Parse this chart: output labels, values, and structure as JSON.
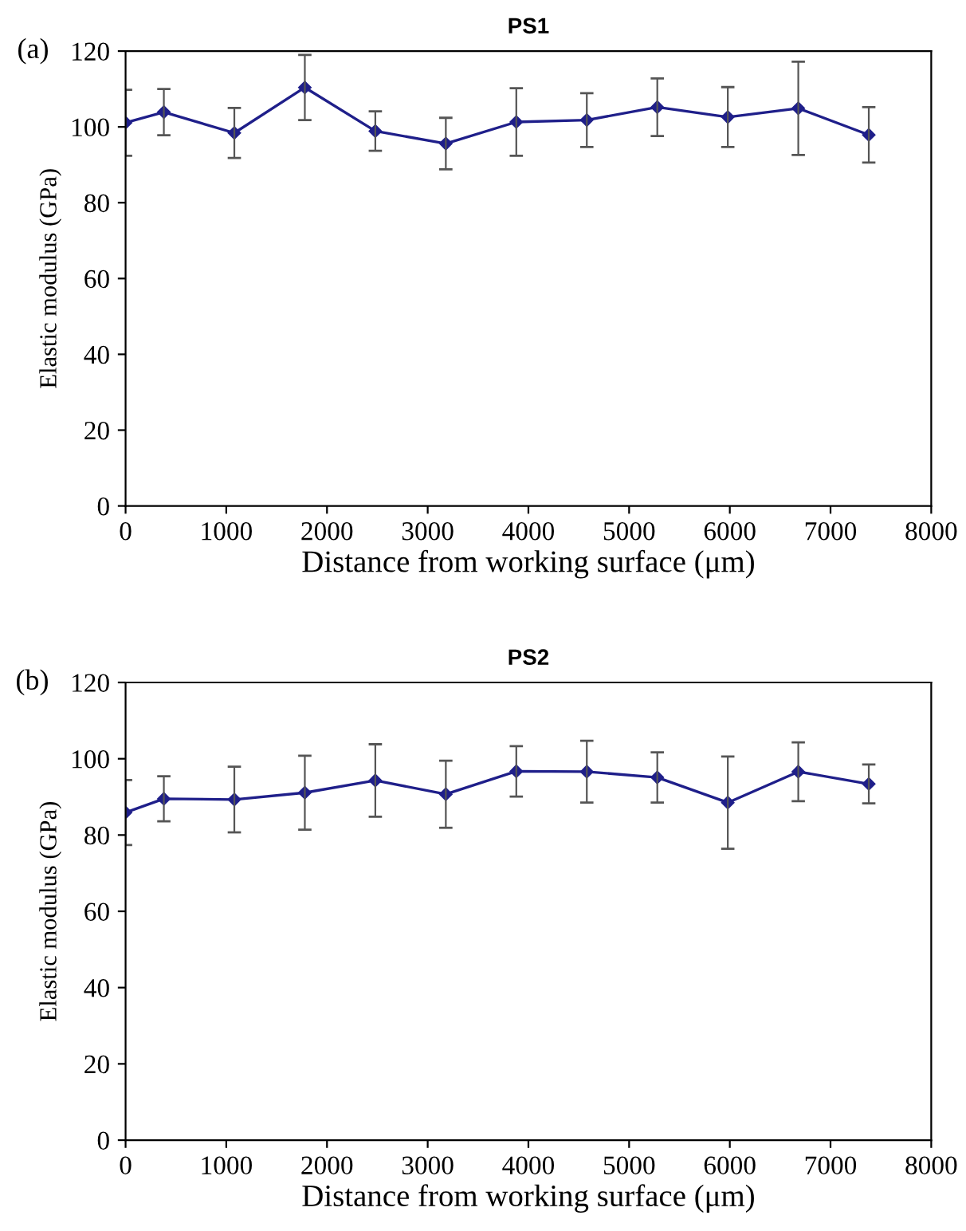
{
  "chart_data": [
    {
      "type": "line",
      "title": "PS1",
      "annotations": [
        "(a)"
      ],
      "xlabel": "Distance from working surface (μm)",
      "ylabel": "Elastic modulus (GPa)",
      "x": [
        0,
        380,
        1080,
        1780,
        2480,
        3180,
        3880,
        4580,
        5280,
        5980,
        6680,
        7380
      ],
      "series": [
        {
          "color": "#1f1f8a",
          "values": [
            101.1,
            103.9,
            98.4,
            110.4,
            98.9,
            95.6,
            101.3,
            101.8,
            105.2,
            102.6,
            104.9,
            97.9
          ],
          "errors": [
            8.7,
            6.1,
            6.6,
            8.6,
            5.2,
            6.8,
            8.9,
            7.1,
            7.6,
            7.9,
            12.3,
            7.3
          ]
        }
      ],
      "xlim": [
        0,
        8000
      ],
      "xticks": [
        0,
        1000,
        2000,
        3000,
        4000,
        5000,
        6000,
        7000,
        8000
      ],
      "ylim": [
        0,
        120
      ],
      "yticks": [
        0,
        20,
        40,
        60,
        80,
        100,
        120
      ],
      "grid": false,
      "legend": false,
      "marker": "diamond",
      "line_style": "solid"
    },
    {
      "type": "line",
      "title": "PS2",
      "annotations": [
        "(b)"
      ],
      "xlabel": "Distance from working surface (μm)",
      "ylabel": "Elastic modulus (GPa)",
      "x": [
        0,
        380,
        1080,
        1780,
        2480,
        3180,
        3880,
        4580,
        5280,
        5980,
        6680,
        7380
      ],
      "series": [
        {
          "color": "#1f1f8a",
          "values": [
            85.9,
            89.5,
            89.3,
            91.1,
            94.3,
            90.7,
            96.7,
            96.6,
            95.1,
            88.5,
            96.6,
            93.4
          ],
          "errors": [
            8.5,
            5.9,
            8.6,
            9.7,
            9.5,
            8.8,
            6.6,
            8.1,
            6.6,
            12.1,
            7.7,
            5.1
          ]
        }
      ],
      "xlim": [
        0,
        8000
      ],
      "xticks": [
        0,
        1000,
        2000,
        3000,
        4000,
        5000,
        6000,
        7000,
        8000
      ],
      "ylim": [
        0,
        120
      ],
      "yticks": [
        0,
        20,
        40,
        60,
        80,
        100,
        120
      ],
      "grid": false,
      "legend": false,
      "marker": "diamond",
      "line_style": "solid"
    }
  ]
}
